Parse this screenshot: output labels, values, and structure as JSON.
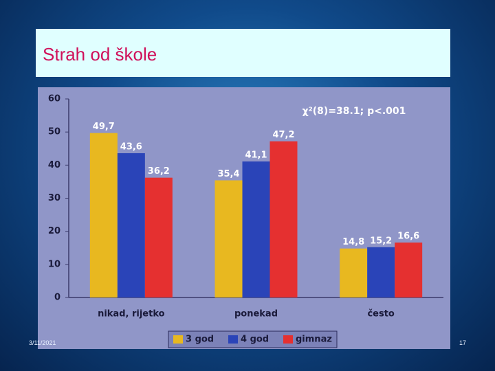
{
  "title": "Strah od škole",
  "footer": {
    "date": "3/11/2021",
    "page": "17"
  },
  "chart_data": {
    "type": "bar",
    "categories": [
      "nikad, rijetko",
      "ponekad",
      "često"
    ],
    "series": [
      {
        "name": "3 god",
        "color": "#e8b820",
        "values": [
          49.7,
          35.4,
          14.8
        ],
        "value_labels": [
          "49,7",
          "35,4",
          "14,8"
        ]
      },
      {
        "name": "4 god",
        "color": "#2a44b8",
        "values": [
          43.6,
          41.1,
          15.2
        ],
        "value_labels": [
          "43,6",
          "41,1",
          "15,2"
        ]
      },
      {
        "name": "gimnaz",
        "color": "#e53030",
        "values": [
          36.2,
          47.2,
          16.6
        ],
        "value_labels": [
          "36,2",
          "47,2",
          "16,6"
        ]
      }
    ],
    "annotation": "χ²(8)=38.1; p<.001",
    "ylim": [
      0,
      60
    ],
    "yticks": [
      0,
      10,
      20,
      30,
      40,
      50,
      60
    ],
    "grid": false
  }
}
